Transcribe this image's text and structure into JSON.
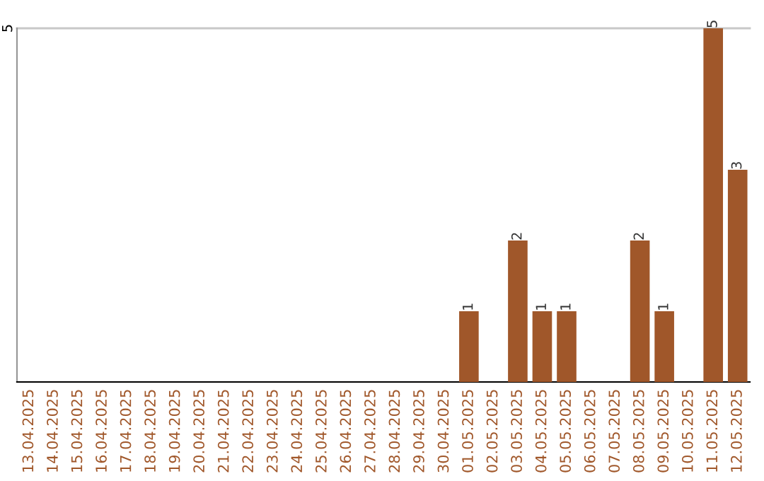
{
  "chart_data": {
    "type": "bar",
    "categories": [
      "13.04.2025",
      "14.04.2025",
      "15.04.2025",
      "16.04.2025",
      "17.04.2025",
      "18.04.2025",
      "19.04.2025",
      "20.04.2025",
      "21.04.2025",
      "22.04.2025",
      "23.04.2025",
      "24.04.2025",
      "25.04.2025",
      "26.04.2025",
      "27.04.2025",
      "28.04.2025",
      "29.04.2025",
      "30.04.2025",
      "01.05.2025",
      "02.05.2025",
      "03.05.2025",
      "04.05.2025",
      "05.05.2025",
      "06.05.2025",
      "07.05.2025",
      "08.05.2025",
      "09.05.2025",
      "10.05.2025",
      "11.05.2025",
      "12.05.2025"
    ],
    "values": [
      null,
      null,
      null,
      null,
      null,
      null,
      null,
      null,
      null,
      null,
      null,
      null,
      null,
      null,
      null,
      null,
      null,
      null,
      1,
      null,
      2,
      1,
      1,
      null,
      null,
      2,
      1,
      null,
      5,
      3
    ],
    "value_labels": [
      null,
      null,
      null,
      null,
      null,
      null,
      null,
      null,
      null,
      null,
      null,
      null,
      null,
      null,
      null,
      null,
      null,
      null,
      "1",
      null,
      "2",
      "1",
      "1",
      null,
      null,
      "2",
      "1",
      null,
      "5",
      "3"
    ],
    "color": "#a0572a",
    "ylim": [
      0,
      5
    ],
    "yticks": [
      5
    ],
    "ref_lines": [
      {
        "axis": "y",
        "value": 5,
        "color": "#c8c8c8"
      }
    ]
  }
}
